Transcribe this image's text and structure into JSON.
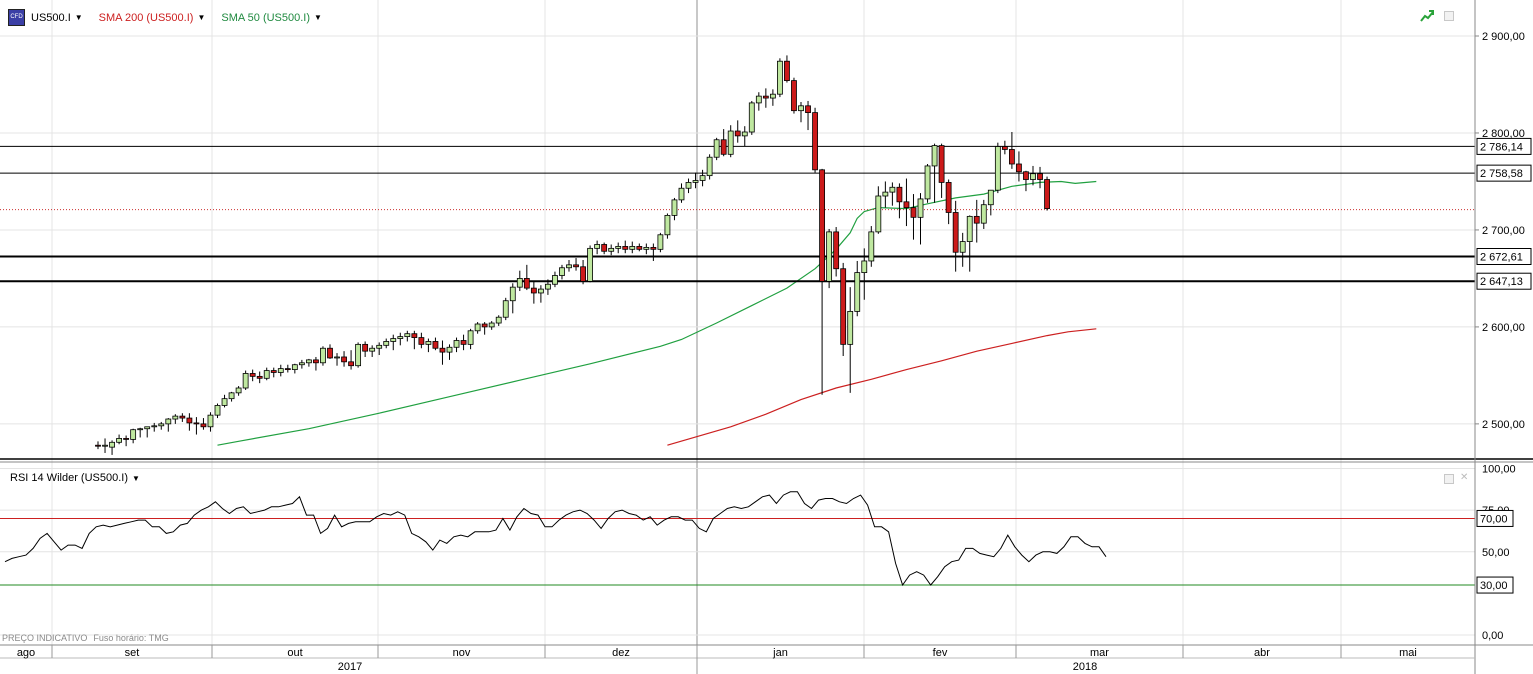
{
  "header": {
    "symbol": "US500.I",
    "sma200_label": "SMA 200 (US500.I)",
    "sma50_label": "SMA 50 (US500.I)",
    "symbol_icon": "cfd-icon",
    "caret_icon": "caret-down-icon",
    "trend_icon": "trend-arrow-icon",
    "colors": {
      "sma200": "#cc2020",
      "sma50": "#20a040",
      "bull": "#bfe8a0",
      "bear": "#cc1a1a"
    }
  },
  "rsi_panel": {
    "label": "RSI 14 Wilder (US500.I)",
    "colors": {
      "upper": "#cc2020",
      "lower": "#208a20",
      "line": "#000000"
    }
  },
  "footer": {
    "price_note": "PREÇO INDICATIVO",
    "timezone_note": "Fuso horário: TMG"
  },
  "chart_data": [
    {
      "type": "candlestick",
      "title": "US500.I",
      "y_axis": {
        "ticks": [
          "2 900,00",
          "2 800,00",
          "2 700,00",
          "2 600,00",
          "2 500,00"
        ],
        "ylim": [
          2478,
          2935
        ]
      },
      "horizontal_levels": [
        {
          "value": 2786.14,
          "label": "2 786,14"
        },
        {
          "value": 2758.58,
          "label": "2 758,58"
        },
        {
          "value": 2672.61,
          "label": "2 672,61"
        },
        {
          "value": 2647.13,
          "label": "2 647,13"
        }
      ],
      "last_price_line": 2721,
      "x_axis": {
        "months": [
          "ago",
          "set",
          "out",
          "nov",
          "dez",
          "jan",
          "fev",
          "mar",
          "abr",
          "mai"
        ],
        "years": [
          "2017",
          "2018"
        ]
      },
      "candles": [
        [
          2478,
          2482,
          2474,
          2477
        ],
        [
          2477,
          2485,
          2470,
          2478
        ],
        [
          2476,
          2483,
          2468,
          2481
        ],
        [
          2481,
          2489,
          2479,
          2485
        ],
        [
          2485,
          2488,
          2477,
          2484
        ],
        [
          2484,
          2495,
          2480,
          2494
        ],
        [
          2494,
          2496,
          2486,
          2495
        ],
        [
          2495,
          2497,
          2486,
          2497
        ],
        [
          2497,
          2501,
          2492,
          2498
        ],
        [
          2498,
          2502,
          2494,
          2500
        ],
        [
          2500,
          2506,
          2492,
          2505
        ],
        [
          2505,
          2510,
          2500,
          2508
        ],
        [
          2508,
          2511,
          2502,
          2506
        ],
        [
          2506,
          2511,
          2493,
          2501
        ],
        [
          2501,
          2507,
          2489,
          2500
        ],
        [
          2500,
          2506,
          2494,
          2497
        ],
        [
          2497,
          2512,
          2492,
          2509
        ],
        [
          2509,
          2521,
          2506,
          2519
        ],
        [
          2519,
          2530,
          2517,
          2526
        ],
        [
          2526,
          2533,
          2523,
          2532
        ],
        [
          2532,
          2539,
          2529,
          2537
        ],
        [
          2537,
          2555,
          2535,
          2552
        ],
        [
          2552,
          2556,
          2544,
          2549
        ],
        [
          2549,
          2554,
          2542,
          2547
        ],
        [
          2547,
          2558,
          2545,
          2555
        ],
        [
          2555,
          2558,
          2548,
          2553
        ],
        [
          2553,
          2561,
          2549,
          2557
        ],
        [
          2557,
          2561,
          2553,
          2556
        ],
        [
          2556,
          2562,
          2552,
          2561
        ],
        [
          2561,
          2566,
          2557,
          2563
        ],
        [
          2563,
          2567,
          2559,
          2566
        ],
        [
          2566,
          2569,
          2555,
          2563
        ],
        [
          2563,
          2580,
          2560,
          2578
        ],
        [
          2578,
          2582,
          2567,
          2568
        ],
        [
          2568,
          2573,
          2560,
          2569
        ],
        [
          2569,
          2575,
          2559,
          2564
        ],
        [
          2564,
          2576,
          2556,
          2560
        ],
        [
          2560,
          2584,
          2558,
          2582
        ],
        [
          2582,
          2585,
          2569,
          2575
        ],
        [
          2575,
          2581,
          2569,
          2578
        ],
        [
          2578,
          2584,
          2571,
          2581
        ],
        [
          2581,
          2588,
          2578,
          2585
        ],
        [
          2585,
          2592,
          2576,
          2588
        ],
        [
          2588,
          2594,
          2581,
          2590
        ],
        [
          2590,
          2596,
          2585,
          2593
        ],
        [
          2593,
          2596,
          2577,
          2589
        ],
        [
          2589,
          2594,
          2578,
          2582
        ],
        [
          2582,
          2588,
          2574,
          2585
        ],
        [
          2585,
          2589,
          2576,
          2578
        ],
        [
          2578,
          2586,
          2561,
          2574
        ],
        [
          2574,
          2582,
          2566,
          2579
        ],
        [
          2579,
          2589,
          2574,
          2586
        ],
        [
          2586,
          2592,
          2576,
          2582
        ],
        [
          2582,
          2598,
          2577,
          2596
        ],
        [
          2596,
          2605,
          2593,
          2603
        ],
        [
          2603,
          2605,
          2592,
          2600
        ],
        [
          2600,
          2606,
          2597,
          2604
        ],
        [
          2604,
          2612,
          2601,
          2610
        ],
        [
          2610,
          2630,
          2607,
          2627
        ],
        [
          2627,
          2645,
          2614,
          2641
        ],
        [
          2641,
          2658,
          2637,
          2650
        ],
        [
          2650,
          2664,
          2638,
          2640
        ],
        [
          2640,
          2647,
          2624,
          2635
        ],
        [
          2635,
          2643,
          2625,
          2639
        ],
        [
          2639,
          2649,
          2633,
          2644
        ],
        [
          2644,
          2657,
          2641,
          2653
        ],
        [
          2653,
          2664,
          2649,
          2661
        ],
        [
          2661,
          2669,
          2657,
          2664
        ],
        [
          2664,
          2671,
          2658,
          2662
        ],
        [
          2662,
          2669,
          2644,
          2647
        ],
        [
          2647,
          2684,
          2646,
          2681
        ],
        [
          2681,
          2689,
          2675,
          2685
        ],
        [
          2685,
          2687,
          2675,
          2678
        ],
        [
          2678,
          2685,
          2674,
          2681
        ],
        [
          2681,
          2687,
          2676,
          2683
        ],
        [
          2683,
          2689,
          2676,
          2680
        ],
        [
          2680,
          2688,
          2676,
          2683
        ],
        [
          2683,
          2686,
          2678,
          2680
        ],
        [
          2680,
          2686,
          2675,
          2682
        ],
        [
          2682,
          2686,
          2668,
          2680
        ],
        [
          2680,
          2697,
          2677,
          2695
        ],
        [
          2695,
          2717,
          2691,
          2715
        ],
        [
          2715,
          2733,
          2710,
          2731
        ],
        [
          2731,
          2748,
          2728,
          2743
        ],
        [
          2743,
          2753,
          2738,
          2749
        ],
        [
          2749,
          2759,
          2743,
          2751
        ],
        [
          2751,
          2762,
          2745,
          2756
        ],
        [
          2756,
          2778,
          2752,
          2775
        ],
        [
          2775,
          2795,
          2772,
          2793
        ],
        [
          2793,
          2804,
          2776,
          2778
        ],
        [
          2778,
          2808,
          2775,
          2802
        ],
        [
          2802,
          2813,
          2790,
          2797
        ],
        [
          2797,
          2807,
          2786,
          2801
        ],
        [
          2801,
          2833,
          2798,
          2831
        ],
        [
          2831,
          2842,
          2823,
          2838
        ],
        [
          2838,
          2846,
          2826,
          2836
        ],
        [
          2836,
          2845,
          2828,
          2840
        ],
        [
          2840,
          2877,
          2837,
          2874
        ],
        [
          2874,
          2880,
          2852,
          2854
        ],
        [
          2854,
          2857,
          2820,
          2823
        ],
        [
          2823,
          2832,
          2811,
          2828
        ],
        [
          2828,
          2833,
          2803,
          2821
        ],
        [
          2821,
          2826,
          2759,
          2762
        ],
        [
          2762,
          2763,
          2530,
          2647
        ],
        [
          2647,
          2701,
          2640,
          2698
        ],
        [
          2698,
          2703,
          2652,
          2660
        ],
        [
          2660,
          2666,
          2570,
          2582
        ],
        [
          2582,
          2641,
          2532,
          2616
        ],
        [
          2616,
          2668,
          2611,
          2656
        ],
        [
          2656,
          2681,
          2628,
          2668
        ],
        [
          2668,
          2704,
          2662,
          2698
        ],
        [
          2698,
          2745,
          2696,
          2735
        ],
        [
          2735,
          2750,
          2723,
          2739
        ],
        [
          2739,
          2749,
          2725,
          2744
        ],
        [
          2744,
          2748,
          2712,
          2729
        ],
        [
          2729,
          2753,
          2704,
          2723
        ],
        [
          2723,
          2737,
          2690,
          2713
        ],
        [
          2713,
          2738,
          2685,
          2732
        ],
        [
          2732,
          2768,
          2728,
          2766
        ],
        [
          2766,
          2789,
          2728,
          2787
        ],
        [
          2787,
          2789,
          2733,
          2749
        ],
        [
          2749,
          2752,
          2706,
          2718
        ],
        [
          2718,
          2730,
          2657,
          2677
        ],
        [
          2677,
          2697,
          2662,
          2688
        ],
        [
          2688,
          2715,
          2657,
          2714
        ],
        [
          2714,
          2731,
          2687,
          2707
        ],
        [
          2707,
          2731,
          2701,
          2726
        ],
        [
          2726,
          2740,
          2715,
          2741
        ],
        [
          2741,
          2790,
          2738,
          2786
        ],
        [
          2786,
          2792,
          2778,
          2783
        ],
        [
          2783,
          2801,
          2763,
          2768
        ],
        [
          2768,
          2781,
          2750,
          2760
        ],
        [
          2760,
          2761,
          2740,
          2752
        ],
        [
          2752,
          2766,
          2746,
          2758
        ],
        [
          2758,
          2765,
          2743,
          2752
        ],
        [
          2752,
          2755,
          2720,
          2722
        ]
      ],
      "sma50": [
        [
          17,
          2478
        ],
        [
          20,
          2482
        ],
        [
          30,
          2495
        ],
        [
          40,
          2511
        ],
        [
          50,
          2528
        ],
        [
          60,
          2545
        ],
        [
          70,
          2562
        ],
        [
          80,
          2580
        ],
        [
          83,
          2587
        ],
        [
          88,
          2604
        ],
        [
          93,
          2622
        ],
        [
          98,
          2640
        ],
        [
          102,
          2660
        ],
        [
          105,
          2680
        ],
        [
          107,
          2697
        ],
        [
          108,
          2712
        ],
        [
          109,
          2719
        ],
        [
          111,
          2723
        ],
        [
          115,
          2722
        ],
        [
          118,
          2727
        ],
        [
          122,
          2733
        ],
        [
          126,
          2737
        ],
        [
          130,
          2745
        ],
        [
          134,
          2749
        ],
        [
          137,
          2750
        ],
        [
          139,
          2748
        ],
        [
          142,
          2750
        ]
      ],
      "sma200": [
        [
          81,
          2478
        ],
        [
          90,
          2497
        ],
        [
          95,
          2510
        ],
        [
          100,
          2525
        ],
        [
          105,
          2537
        ],
        [
          110,
          2546
        ],
        [
          115,
          2556
        ],
        [
          120,
          2565
        ],
        [
          125,
          2575
        ],
        [
          130,
          2583
        ],
        [
          135,
          2591
        ],
        [
          138,
          2595
        ],
        [
          142,
          2598
        ]
      ]
    },
    {
      "type": "line",
      "title": "RSI 14 Wilder (US500.I)",
      "y_axis": {
        "ticks": [
          "100,00",
          "75,00",
          "50,00",
          "0,00"
        ],
        "ylim": [
          0,
          100
        ]
      },
      "levels": [
        {
          "value": 70,
          "label": "70,00"
        },
        {
          "value": 30,
          "label": "30,00"
        }
      ],
      "values": [
        44,
        46,
        47,
        48,
        52,
        58,
        61,
        56,
        51,
        54,
        54,
        52,
        61,
        65,
        66,
        65,
        66,
        67,
        68,
        69,
        69,
        65,
        65,
        61,
        62,
        66,
        67,
        72,
        75,
        77,
        80,
        76,
        73,
        76,
        77,
        73,
        74,
        75,
        77,
        77,
        78,
        79,
        83,
        72,
        72,
        61,
        64,
        72,
        65,
        67,
        68,
        68,
        68,
        71,
        73,
        72,
        74,
        72,
        61,
        59,
        56,
        51,
        57,
        55,
        59,
        60,
        59,
        62,
        62,
        62,
        63,
        70,
        63,
        71,
        76,
        73,
        72,
        65,
        65,
        69,
        72,
        74,
        75,
        73,
        69,
        64,
        70,
        74,
        75,
        73,
        72,
        69,
        71,
        66,
        69,
        71,
        71,
        69,
        69,
        64,
        62,
        70,
        73,
        76,
        77,
        76,
        77,
        80,
        83,
        84,
        79,
        84,
        86,
        86,
        79,
        76,
        81,
        82,
        82,
        80,
        79,
        82,
        84,
        78,
        65,
        65,
        62,
        43,
        30,
        36,
        38,
        36,
        30,
        35,
        41,
        44,
        45,
        52,
        52,
        49,
        48,
        47,
        52,
        60,
        53,
        48,
        44,
        48,
        50,
        50,
        49,
        53,
        59,
        59,
        55,
        53,
        53,
        47
      ]
    }
  ]
}
